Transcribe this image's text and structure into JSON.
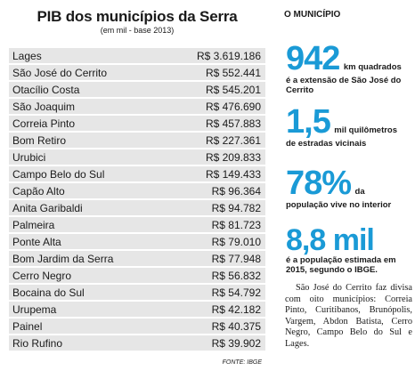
{
  "table": {
    "title": "PIB dos municípios da Serra",
    "subtitle": "(em mil - base 2013)",
    "rows": [
      {
        "name": "Lages",
        "value": "R$ 3.619.186"
      },
      {
        "name": "São José do Cerrito",
        "value": "R$ 552.441"
      },
      {
        "name": "Otacílio Costa",
        "value": "R$ 545.201"
      },
      {
        "name": "São Joaquim",
        "value": "R$ 476.690"
      },
      {
        "name": "Correia Pinto",
        "value": "R$ 457.883"
      },
      {
        "name": "Bom Retiro",
        "value": "R$ 227.361"
      },
      {
        "name": "Urubici",
        "value": "R$ 209.833"
      },
      {
        "name": "Campo Belo do Sul",
        "value": "R$ 149.433"
      },
      {
        "name": "Capão Alto",
        "value": "R$ 96.364"
      },
      {
        "name": "Anita Garibaldi",
        "value": "R$ 94.782"
      },
      {
        "name": "Palmeira",
        "value": "R$ 81.723"
      },
      {
        "name": "Ponte Alta",
        "value": "R$ 79.010"
      },
      {
        "name": "Bom Jardim da Serra",
        "value": "R$ 77.948"
      },
      {
        "name": "Cerro Negro",
        "value": "R$ 56.832"
      },
      {
        "name": "Bocaina do Sul",
        "value": "R$ 54.792"
      },
      {
        "name": "Urupema",
        "value": "R$ 42.182"
      },
      {
        "name": "Painel",
        "value": "R$ 40.375"
      },
      {
        "name": "Rio Rufino",
        "value": "R$ 39.902"
      }
    ],
    "source": "FONTE: IBGE"
  },
  "sidebar": {
    "heading": "O MUNICÍPIO",
    "stats": [
      {
        "number": "942",
        "inline": "km quadrados",
        "text": "é a extensão de São José do Cerrito"
      },
      {
        "number": "1,5",
        "inline": "mil quilômetros",
        "text": "de estradas vicinais"
      },
      {
        "number": "78%",
        "inline": "da",
        "text": "população vive no interior"
      },
      {
        "number": "8,8 mil",
        "inline": "",
        "text": "é a população estimada em 2015, segundo o IBGE."
      }
    ],
    "note": "São José do Cerrito faz divisa com oito municípios: Correia Pinto, Curitibanos, Brunópolis, Vargem, Abdon Batista, Cerro Negro, Campo Belo do Sul e Lages."
  },
  "colors": {
    "accent": "#1a9ad6",
    "row_bg": "#e6e6e6"
  }
}
